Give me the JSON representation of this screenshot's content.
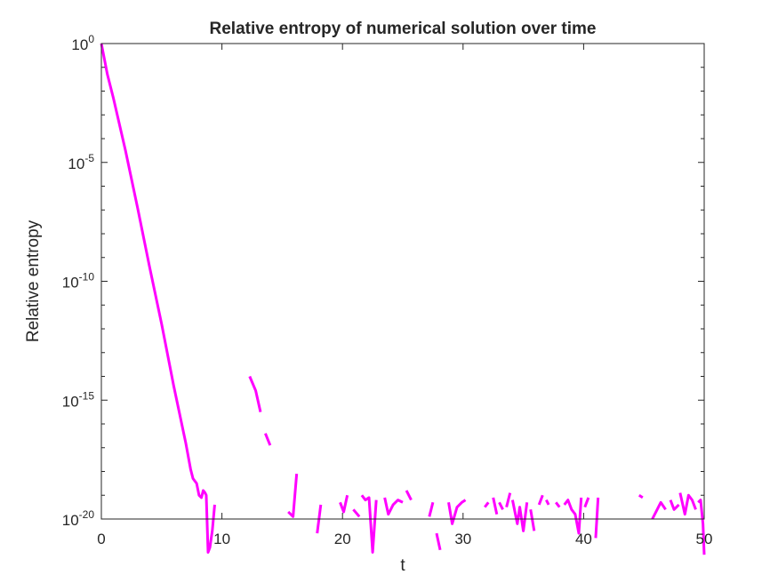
{
  "chart_data": {
    "type": "line",
    "title": "Relative entropy of numerical solution over time",
    "xlabel": "t",
    "ylabel": "Relative entropy",
    "xlim": [
      0,
      50
    ],
    "ylim_log10": [
      -20,
      0
    ],
    "yscale": "log",
    "grid": false,
    "x_ticks": [
      {
        "value": 0,
        "label": "0"
      },
      {
        "value": 10,
        "label": "10"
      },
      {
        "value": 20,
        "label": "20"
      },
      {
        "value": 30,
        "label": "30"
      },
      {
        "value": 40,
        "label": "40"
      },
      {
        "value": 50,
        "label": "50"
      }
    ],
    "y_ticks": [
      {
        "exp": 0,
        "base": "10",
        "power": "0"
      },
      {
        "exp": -5,
        "base": "10",
        "power": "-5"
      },
      {
        "exp": -10,
        "base": "10",
        "power": "-10"
      },
      {
        "exp": -15,
        "base": "10",
        "power": "-15"
      },
      {
        "exp": -20,
        "base": "10",
        "power": "-20"
      }
    ],
    "series": [
      {
        "color": "#ff00ff",
        "segments": [
          [
            [
              0,
              0
            ],
            [
              0.5,
              -1.3
            ],
            [
              1,
              -2.3
            ],
            [
              2,
              -4.5
            ],
            [
              3,
              -6.9
            ],
            [
              4,
              -9.4
            ],
            [
              5,
              -11.8
            ],
            [
              6,
              -14.4
            ],
            [
              7,
              -16.8
            ],
            [
              7.4,
              -17.9
            ],
            [
              7.6,
              -18.3
            ],
            [
              7.9,
              -18.5
            ],
            [
              8.1,
              -19.0
            ],
            [
              8.3,
              -19.1
            ],
            [
              8.45,
              -18.8
            ],
            [
              8.6,
              -18.9
            ],
            [
              8.7,
              -19.0
            ],
            [
              8.85,
              -21.4
            ],
            [
              9.0,
              -21.2
            ],
            [
              9.2,
              -20.5
            ],
            [
              9.4,
              -19.4
            ]
          ],
          [
            [
              12.3,
              -14.0
            ],
            [
              12.8,
              -14.6
            ],
            [
              13.2,
              -15.5
            ]
          ],
          [
            [
              13.6,
              -16.4
            ],
            [
              14.0,
              -16.9
            ]
          ],
          [
            [
              15.5,
              -19.7
            ],
            [
              15.9,
              -19.9
            ],
            [
              16.2,
              -18.1
            ]
          ],
          [
            [
              17.9,
              -20.6
            ],
            [
              18.2,
              -19.4
            ]
          ],
          [
            [
              19.8,
              -19.3
            ],
            [
              20.1,
              -19.7
            ],
            [
              20.4,
              -19.0
            ]
          ],
          [
            [
              20.9,
              -19.6
            ],
            [
              21.4,
              -19.9
            ]
          ],
          [
            [
              21.6,
              -19.0
            ],
            [
              21.9,
              -19.2
            ],
            [
              22.2,
              -19.1
            ],
            [
              22.5,
              -21.4
            ],
            [
              22.8,
              -19.2
            ]
          ],
          [
            [
              23.5,
              -19.1
            ],
            [
              23.8,
              -19.8
            ],
            [
              24.2,
              -19.4
            ],
            [
              24.6,
              -19.2
            ],
            [
              25.0,
              -19.3
            ]
          ],
          [
            [
              25.3,
              -18.8
            ],
            [
              25.7,
              -19.2
            ]
          ],
          [
            [
              27.2,
              -19.9
            ],
            [
              27.5,
              -19.3
            ]
          ],
          [
            [
              27.8,
              -20.6
            ],
            [
              28.1,
              -21.3
            ]
          ],
          [
            [
              28.8,
              -19.3
            ],
            [
              29.1,
              -20.2
            ],
            [
              29.5,
              -19.5
            ],
            [
              29.9,
              -19.3
            ],
            [
              30.2,
              -19.2
            ]
          ],
          [
            [
              31.8,
              -19.5
            ],
            [
              32.1,
              -19.3
            ]
          ],
          [
            [
              32.5,
              -19.1
            ],
            [
              32.8,
              -19.8
            ]
          ],
          [
            [
              33.0,
              -19.3
            ],
            [
              33.3,
              -19.6
            ]
          ],
          [
            [
              33.6,
              -19.5
            ],
            [
              33.9,
              -18.9
            ]
          ],
          [
            [
              34.1,
              -19.2
            ],
            [
              34.5,
              -20.2
            ],
            [
              34.7,
              -19.5
            ],
            [
              35.0,
              -20.5
            ],
            [
              35.3,
              -19.3
            ]
          ],
          [
            [
              35.6,
              -19.6
            ],
            [
              35.9,
              -20.5
            ]
          ],
          [
            [
              36.3,
              -19.4
            ],
            [
              36.6,
              -19.0
            ]
          ],
          [
            [
              36.9,
              -19.2
            ],
            [
              37.1,
              -19.4
            ]
          ],
          [
            [
              37.7,
              -19.3
            ],
            [
              38.0,
              -19.5
            ]
          ],
          [
            [
              38.4,
              -19.4
            ],
            [
              38.7,
              -19.2
            ],
            [
              39.0,
              -19.6
            ],
            [
              39.3,
              -19.8
            ],
            [
              39.6,
              -20.6
            ],
            [
              39.8,
              -19.1
            ]
          ],
          [
            [
              40.1,
              -19.5
            ],
            [
              40.4,
              -19.1
            ]
          ],
          [
            [
              41.0,
              -20.8
            ],
            [
              41.2,
              -19.1
            ]
          ],
          [
            [
              44.6,
              -19.0
            ],
            [
              44.9,
              -19.1
            ]
          ],
          [
            [
              45.7,
              -20.0
            ],
            [
              46.1,
              -19.6
            ],
            [
              46.4,
              -19.3
            ],
            [
              46.8,
              -19.6
            ]
          ],
          [
            [
              47.2,
              -19.2
            ],
            [
              47.5,
              -19.6
            ],
            [
              47.9,
              -19.4
            ]
          ],
          [
            [
              48.0,
              -18.9
            ],
            [
              48.4,
              -19.8
            ],
            [
              48.7,
              -19.0
            ],
            [
              49.0,
              -19.2
            ],
            [
              49.3,
              -19.6
            ]
          ],
          [
            [
              49.5,
              -19.3
            ],
            [
              49.7,
              -19.2
            ],
            [
              49.9,
              -20.2
            ],
            [
              50.0,
              -21.5
            ]
          ]
        ]
      }
    ]
  }
}
